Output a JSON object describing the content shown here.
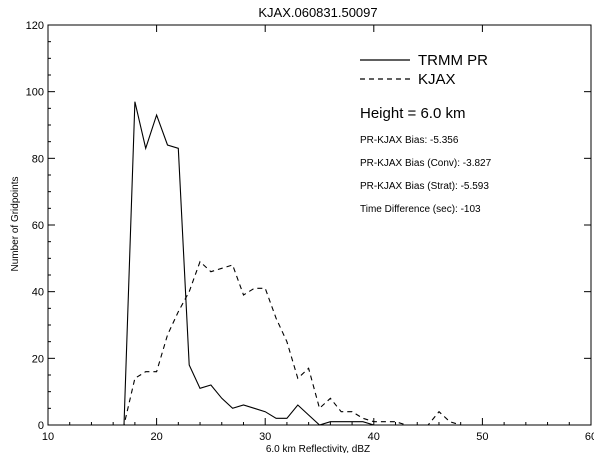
{
  "chart_data": {
    "type": "line",
    "title": "KJAX.060831.50097",
    "xlabel": "6.0 km Reflectivity, dBZ",
    "ylabel": "Number of Gridpoints",
    "xlim": [
      10,
      60
    ],
    "ylim": [
      0,
      120
    ],
    "x_ticks": [
      10,
      20,
      30,
      40,
      50,
      60
    ],
    "y_ticks": [
      0,
      20,
      40,
      60,
      80,
      100,
      120
    ],
    "grid": false,
    "legend_position": "top-right",
    "series": [
      {
        "name": "TRMM PR",
        "style": "solid",
        "x": [
          15,
          16,
          17,
          18,
          19,
          20,
          21,
          22,
          23,
          24,
          25,
          26,
          27,
          28,
          29,
          30,
          31,
          32,
          33,
          34,
          35,
          36,
          37,
          38,
          39,
          40,
          41,
          42,
          43,
          44,
          45,
          46,
          47,
          48,
          49,
          50
        ],
        "values": [
          0,
          0,
          0,
          97,
          83,
          93,
          84,
          83,
          18,
          11,
          12,
          8,
          5,
          6,
          5,
          4,
          2,
          2,
          6,
          3,
          0,
          1,
          1,
          1,
          1,
          0,
          0,
          0,
          0,
          0,
          0,
          0,
          0,
          0,
          0,
          0
        ]
      },
      {
        "name": "KJAX",
        "style": "dashed",
        "x": [
          15,
          16,
          17,
          18,
          19,
          20,
          21,
          22,
          23,
          24,
          25,
          26,
          27,
          28,
          29,
          30,
          31,
          32,
          33,
          34,
          35,
          36,
          37,
          38,
          39,
          40,
          41,
          42,
          43,
          44,
          45,
          46,
          47,
          48,
          49,
          50
        ],
        "values": [
          0,
          0,
          0,
          14,
          16,
          16,
          27,
          34,
          40,
          49,
          46,
          47,
          48,
          39,
          41,
          41,
          32,
          25,
          14,
          17,
          5,
          8,
          4,
          4,
          2,
          1,
          1,
          1,
          0,
          0,
          0,
          4,
          1,
          0,
          0,
          0
        ]
      }
    ],
    "annotations": {
      "height": "Height = 6.0 km",
      "stats": [
        "PR-KJAX Bias: -5.356",
        "PR-KJAX Bias (Conv): -3.827",
        "PR-KJAX Bias (Strat): -5.593",
        "Time Difference (sec): -103"
      ]
    },
    "colors": {
      "lines": "#000000",
      "background": "#ffffff"
    }
  }
}
